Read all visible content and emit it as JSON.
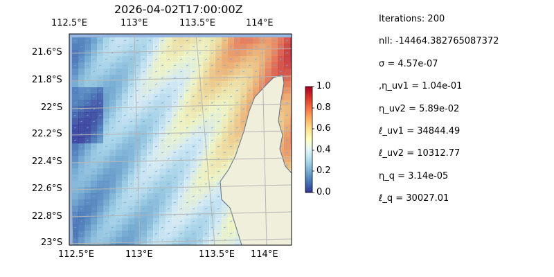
{
  "title": "2026-04-02T17:00:00Z",
  "chart_data": {
    "type": "heatmap",
    "title": "2026-04-02T17:00:00Z",
    "lon_ticks": [
      "112.5°E",
      "113°E",
      "113.5°E",
      "114°E"
    ],
    "lat_ticks": [
      "21.6°S",
      "21.8°S",
      "22°S",
      "22.2°S",
      "22.4°S",
      "22.6°S",
      "22.8°S",
      "23°S"
    ],
    "lon_range": [
      112.5,
      114.2
    ],
    "lat_range": [
      -23.0,
      -21.5
    ],
    "colorbar": {
      "range": [
        0,
        1
      ],
      "ticks": [
        "0.0",
        "0.2",
        "0.4",
        "0.6",
        "0.8",
        "1.0"
      ],
      "colormap": "RdYlBu_r"
    },
    "grid": true,
    "overlays": [
      "quiver arrows",
      "coastline with land"
    ]
  },
  "stats": [
    "Iterations: 200",
    "nll: -14464.382765087372",
    "σ = 4.57e-07",
    ",η_uv1 = 1.04e-01",
    "η_uv2 = 5.89e-02",
    "ℓ_uv1 = 34844.49",
    "ℓ_uv2 = 10312.77",
    "η_q = 3.14e-05",
    "ℓ_q = 30027.01"
  ]
}
